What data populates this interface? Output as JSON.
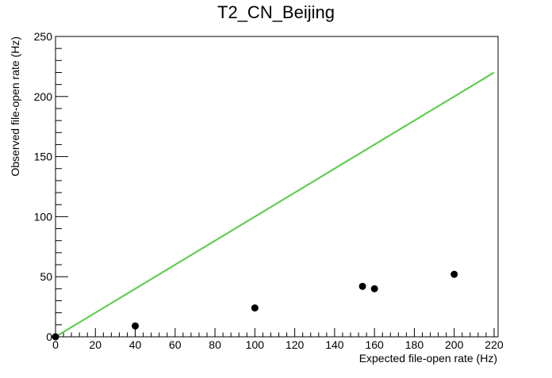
{
  "chart_data": {
    "type": "scatter",
    "title": "T2_CN_Beijing",
    "xlabel": "Expected file-open rate (Hz)",
    "ylabel": "Observed file-open rate (Hz)",
    "xlim": [
      0,
      222
    ],
    "ylim": [
      0,
      250
    ],
    "x_ticks": [
      0,
      20,
      40,
      60,
      80,
      100,
      120,
      140,
      160,
      180,
      200,
      220
    ],
    "y_ticks": [
      0,
      50,
      100,
      150,
      200,
      250
    ],
    "grid": false,
    "legend": "none",
    "series": [
      {
        "type": "scatter",
        "color": "#000000",
        "points": [
          {
            "x": 0,
            "y": 0
          },
          {
            "x": 40,
            "y": 9
          },
          {
            "x": 100,
            "y": 24
          },
          {
            "x": 154,
            "y": 42
          },
          {
            "x": 160,
            "y": 40
          },
          {
            "x": 200,
            "y": 52
          }
        ]
      },
      {
        "type": "line",
        "color": "#55cc44",
        "points": [
          {
            "x": 0,
            "y": 0
          },
          {
            "x": 220,
            "y": 220
          }
        ]
      }
    ]
  }
}
